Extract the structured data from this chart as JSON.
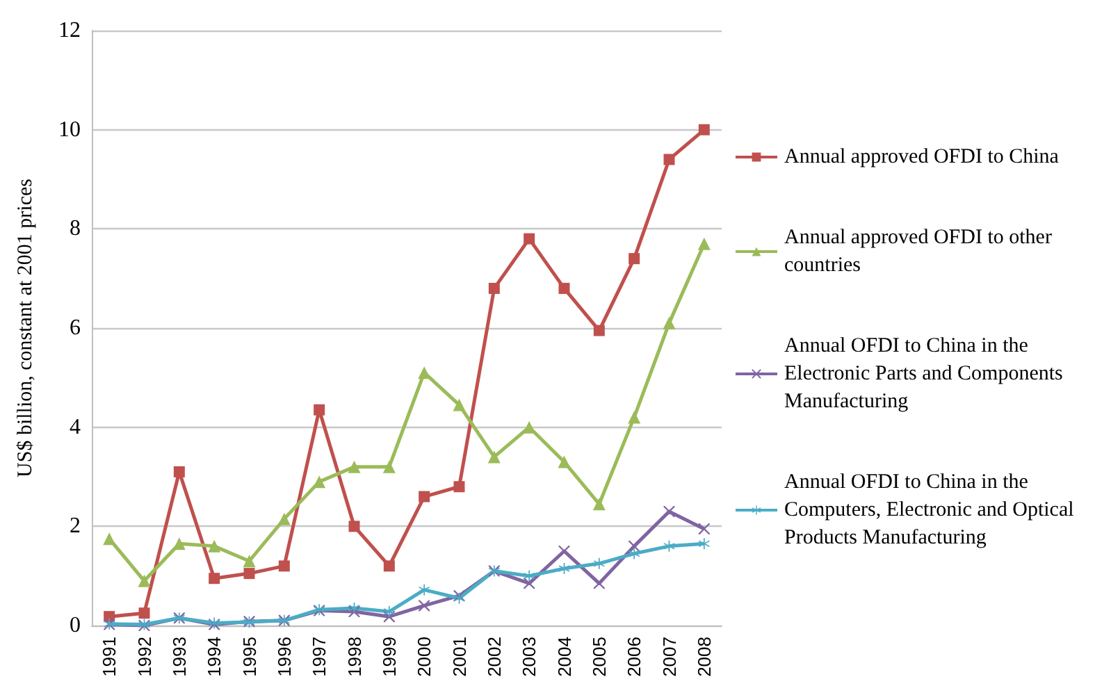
{
  "chart_data": {
    "type": "line",
    "ylabel": "US$ billion, constant at 2001 prices",
    "categories": [
      "1991",
      "1992",
      "1993",
      "1994",
      "1995",
      "1996",
      "1997",
      "1998",
      "1999",
      "2000",
      "2001",
      "2002",
      "2003",
      "2004",
      "2005",
      "2006",
      "2007",
      "2008"
    ],
    "ylim": [
      0,
      12
    ],
    "yticks": [
      0,
      2,
      4,
      6,
      8,
      10,
      12
    ],
    "grid": "y",
    "legend": "right",
    "line_style": "solid",
    "series": [
      {
        "name": "Annual approved OFDI to China",
        "color": "#c0504d",
        "marker": "square",
        "values": [
          0.18,
          0.25,
          3.1,
          0.95,
          1.05,
          1.2,
          4.35,
          2.0,
          1.2,
          2.6,
          2.8,
          6.8,
          7.8,
          6.8,
          5.95,
          7.4,
          9.4,
          10.0
        ]
      },
      {
        "name": "Annual approved OFDI to other countries",
        "color": "#9bbb59",
        "marker": "triangle",
        "values": [
          1.75,
          0.9,
          1.65,
          1.6,
          1.3,
          2.15,
          2.9,
          3.2,
          3.2,
          5.1,
          4.45,
          3.4,
          4.0,
          3.3,
          2.45,
          4.2,
          6.1,
          7.7
        ]
      },
      {
        "name": "Annual OFDI to China in the Electronic Parts and Components Manufacturing",
        "color": "#8064a2",
        "marker": "cross",
        "values": [
          0.02,
          0.0,
          0.15,
          0.02,
          0.08,
          0.1,
          0.3,
          0.28,
          0.18,
          0.4,
          0.6,
          1.1,
          0.85,
          1.5,
          0.85,
          1.6,
          2.3,
          1.95
        ]
      },
      {
        "name": "Annual OFDI to China in the Computers, Electronic and Optical Products Manufacturing",
        "color": "#4bacc6",
        "marker": "star",
        "values": [
          0.03,
          0.02,
          0.15,
          0.05,
          0.07,
          0.1,
          0.32,
          0.35,
          0.28,
          0.72,
          0.55,
          1.1,
          1.0,
          1.15,
          1.25,
          1.45,
          1.6,
          1.65
        ]
      }
    ]
  }
}
